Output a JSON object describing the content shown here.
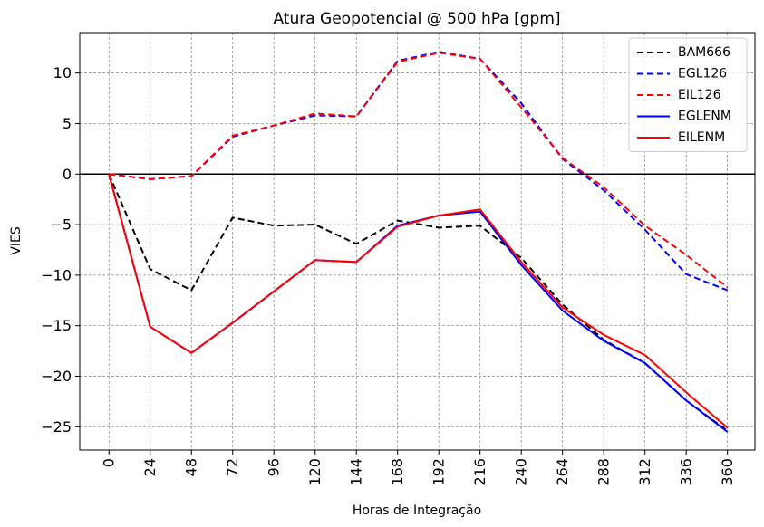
{
  "chart_data": {
    "type": "line",
    "title": "Atura Geopotencial @ 500 hPa [gpm]",
    "xlabel": "Horas de Integração",
    "ylabel": "VIES",
    "x": [
      0,
      24,
      48,
      72,
      96,
      120,
      144,
      168,
      192,
      216,
      240,
      264,
      288,
      312,
      336,
      360
    ],
    "xticks": [
      "0",
      "24",
      "48",
      "72",
      "96",
      "120",
      "144",
      "168",
      "192",
      "216",
      "240",
      "264",
      "288",
      "312",
      "336",
      "360"
    ],
    "yticks": [
      "−25",
      "−20",
      "−15",
      "−10",
      "−5",
      "0",
      "5",
      "10"
    ],
    "ytick_values": [
      -25,
      -20,
      -15,
      -10,
      -5,
      0,
      5,
      10
    ],
    "xlim": [
      -17,
      376
    ],
    "ylim": [
      -27.3,
      14
    ],
    "grid": true,
    "zero_line": true,
    "legend_position": "top-right",
    "series": [
      {
        "name": "BAM666",
        "color": "#000000",
        "style": "dashed",
        "values": [
          0,
          -9.4,
          -11.5,
          -4.3,
          -5.1,
          -5.0,
          -6.9,
          -4.6,
          -5.3,
          -5.1,
          -8.3,
          -12.9,
          -16.4,
          -18.7,
          -22.4,
          -25.4
        ]
      },
      {
        "name": "EGL126",
        "color": "#0000ff",
        "style": "dashed",
        "values": [
          0,
          -0.5,
          -0.2,
          3.7,
          4.8,
          5.8,
          5.7,
          11.2,
          12.1,
          11.4,
          7.0,
          1.5,
          -1.6,
          -5.5,
          -9.9,
          -11.5
        ]
      },
      {
        "name": "EIL126",
        "color": "#ff0000",
        "style": "dashed",
        "values": [
          0,
          -0.5,
          -0.2,
          3.8,
          4.8,
          6.0,
          5.7,
          11.1,
          12.0,
          11.4,
          6.6,
          1.6,
          -1.3,
          -5.1,
          -8.0,
          -11.2
        ]
      },
      {
        "name": "EGLENM",
        "color": "#0000ff",
        "style": "solid",
        "values": [
          0,
          -15.1,
          -17.7,
          -14.7,
          -11.6,
          -8.5,
          -8.7,
          -5.1,
          -4.1,
          -3.7,
          -9.0,
          -13.5,
          -16.5,
          -18.7,
          -22.4,
          -25.5
        ]
      },
      {
        "name": "EILENM",
        "color": "#ff0000",
        "style": "solid",
        "values": [
          0,
          -15.1,
          -17.7,
          -14.7,
          -11.6,
          -8.5,
          -8.7,
          -5.2,
          -4.1,
          -3.5,
          -8.7,
          -13.2,
          -15.9,
          -17.9,
          -21.6,
          -25.1
        ]
      }
    ]
  }
}
